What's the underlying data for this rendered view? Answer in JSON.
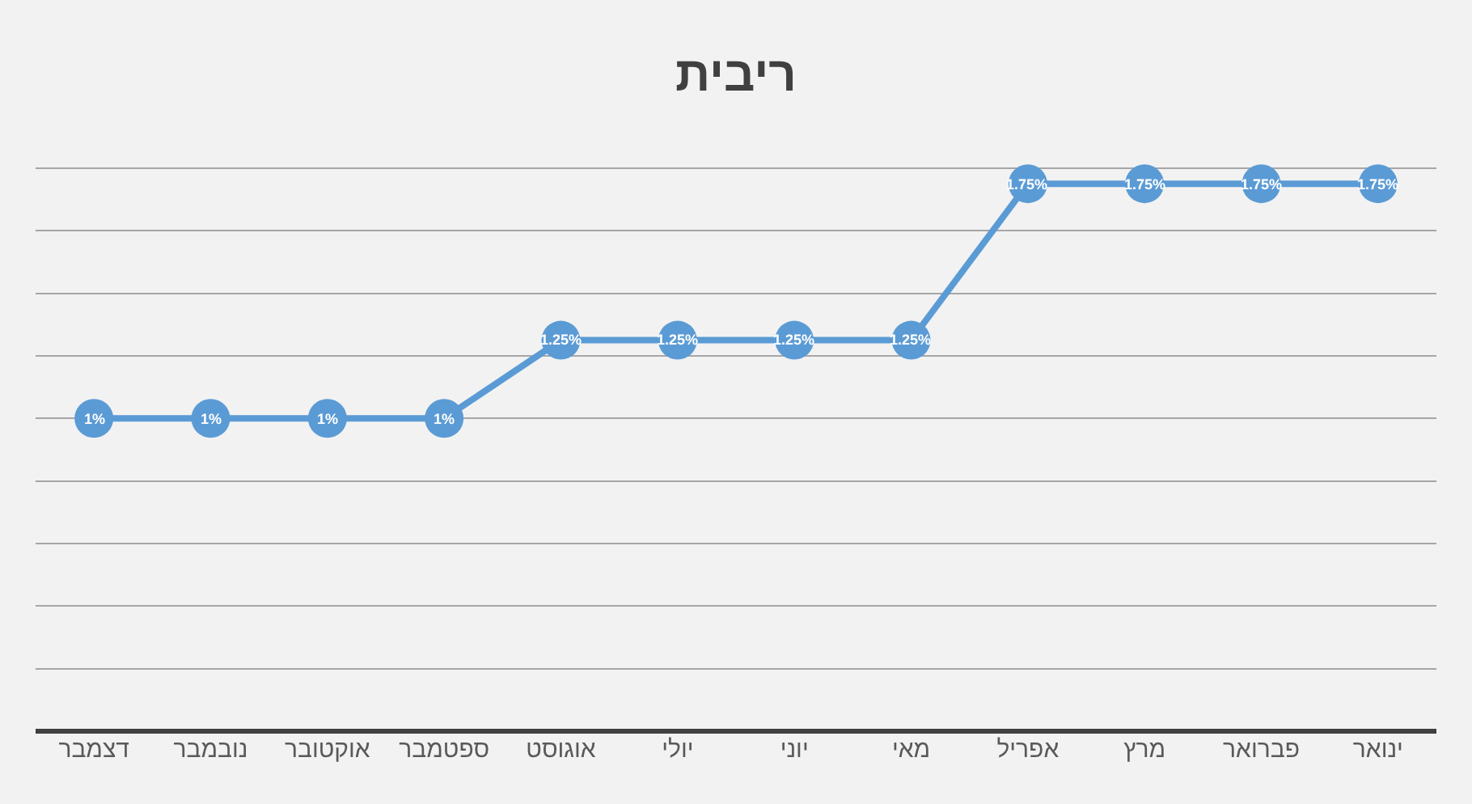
{
  "chart_data": {
    "type": "line",
    "title": "ריבית",
    "categories": [
      "דצמבר",
      "נובמבר",
      "אוקטובר",
      "ספטמבר",
      "אוגוסט",
      "יולי",
      "יוני",
      "מאי",
      "אפריל",
      "מרץ",
      "פברואר",
      "ינואר"
    ],
    "series": [
      {
        "color": "#5b9bd5",
        "values": [
          1,
          1,
          1,
          1,
          1.25,
          1.25,
          1.25,
          1.25,
          1.75,
          1.75,
          1.75,
          1.75
        ],
        "value_labels": [
          "1%",
          "1%",
          "1%",
          "1%",
          "1.25%",
          "1.25%",
          "1.25%",
          "1.25%",
          "1.75%",
          "1.75%",
          "1.75%",
          "1.75%"
        ]
      }
    ],
    "tick_labels": "x",
    "grid": "y",
    "legend": false,
    "marker": "circle",
    "line_style": "solid"
  }
}
